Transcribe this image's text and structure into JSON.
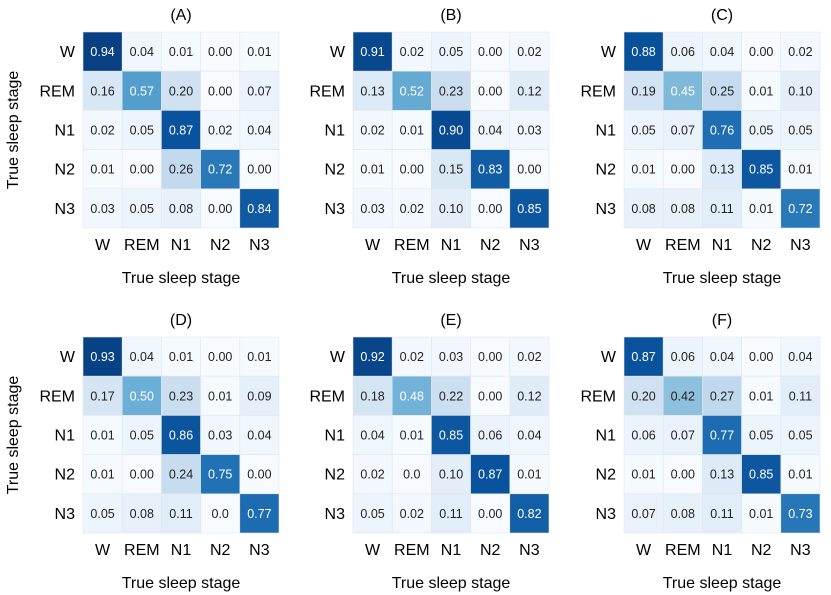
{
  "chart_data": [
    {
      "type": "heatmap",
      "title": "(A)",
      "xlabel": "True sleep stage",
      "ylabel": "True sleep stage",
      "x": [
        "W",
        "REM",
        "N1",
        "N2",
        "N3"
      ],
      "y": [
        "W",
        "REM",
        "N1",
        "N2",
        "N3"
      ],
      "values": [
        [
          "0.94",
          "0.04",
          "0.01",
          "0.00",
          "0.01"
        ],
        [
          "0.16",
          "0.57",
          "0.20",
          "0.00",
          "0.07"
        ],
        [
          "0.02",
          "0.05",
          "0.87",
          "0.02",
          "0.04"
        ],
        [
          "0.01",
          "0.00",
          "0.26",
          "0.72",
          "0.00"
        ],
        [
          "0.03",
          "0.05",
          "0.08",
          "0.00",
          "0.84"
        ]
      ],
      "color_range": [
        0,
        1
      ],
      "colormap": [
        "#f7fbff",
        "#08306b"
      ]
    },
    {
      "type": "heatmap",
      "title": "(B)",
      "xlabel": "True sleep stage",
      "ylabel": "",
      "x": [
        "W",
        "REM",
        "N1",
        "N2",
        "N3"
      ],
      "y": [
        "W",
        "REM",
        "N1",
        "N2",
        "N3"
      ],
      "values": [
        [
          "0.91",
          "0.02",
          "0.05",
          "0.00",
          "0.02"
        ],
        [
          "0.13",
          "0.52",
          "0.23",
          "0.00",
          "0.12"
        ],
        [
          "0.02",
          "0.01",
          "0.90",
          "0.04",
          "0.03"
        ],
        [
          "0.01",
          "0.00",
          "0.15",
          "0.83",
          "0.00"
        ],
        [
          "0.03",
          "0.02",
          "0.10",
          "0.00",
          "0.85"
        ]
      ],
      "color_range": [
        0,
        1
      ],
      "colormap": [
        "#f7fbff",
        "#08306b"
      ]
    },
    {
      "type": "heatmap",
      "title": "(C)",
      "xlabel": "True sleep stage",
      "ylabel": "",
      "x": [
        "W",
        "REM",
        "N1",
        "N2",
        "N3"
      ],
      "y": [
        "W",
        "REM",
        "N1",
        "N2",
        "N3"
      ],
      "values": [
        [
          "0.88",
          "0.06",
          "0.04",
          "0.00",
          "0.02"
        ],
        [
          "0.19",
          "0.45",
          "0.25",
          "0.01",
          "0.10"
        ],
        [
          "0.05",
          "0.07",
          "0.76",
          "0.05",
          "0.05"
        ],
        [
          "0.01",
          "0.00",
          "0.13",
          "0.85",
          "0.01"
        ],
        [
          "0.08",
          "0.08",
          "0.11",
          "0.01",
          "0.72"
        ]
      ],
      "color_range": [
        0,
        1
      ],
      "colormap": [
        "#f7fbff",
        "#08306b"
      ]
    },
    {
      "type": "heatmap",
      "title": "(D)",
      "xlabel": "True sleep stage",
      "ylabel": "True sleep stage",
      "x": [
        "W",
        "REM",
        "N1",
        "N2",
        "N3"
      ],
      "y": [
        "W",
        "REM",
        "N1",
        "N2",
        "N3"
      ],
      "values": [
        [
          "0.93",
          "0.04",
          "0.01",
          "0.00",
          "0.01"
        ],
        [
          "0.17",
          "0.50",
          "0.23",
          "0.01",
          "0.09"
        ],
        [
          "0.01",
          "0.05",
          "0.86",
          "0.03",
          "0.04"
        ],
        [
          "0.01",
          "0.00",
          "0.24",
          "0.75",
          "0.00"
        ],
        [
          "0.05",
          "0.08",
          "0.11",
          "0.0",
          "0.77"
        ]
      ],
      "color_range": [
        0,
        1
      ],
      "colormap": [
        "#f7fbff",
        "#08306b"
      ]
    },
    {
      "type": "heatmap",
      "title": "(E)",
      "xlabel": "True sleep stage",
      "ylabel": "",
      "x": [
        "W",
        "REM",
        "N1",
        "N2",
        "N3"
      ],
      "y": [
        "W",
        "REM",
        "N1",
        "N2",
        "N3"
      ],
      "values": [
        [
          "0.92",
          "0.02",
          "0.03",
          "0.00",
          "0.02"
        ],
        [
          "0.18",
          "0.48",
          "0.22",
          "0.00",
          "0.12"
        ],
        [
          "0.04",
          "0.01",
          "0.85",
          "0.06",
          "0.04"
        ],
        [
          "0.02",
          "0.0",
          "0.10",
          "0.87",
          "0.01"
        ],
        [
          "0.05",
          "0.02",
          "0.11",
          "0.00",
          "0.82"
        ]
      ],
      "color_range": [
        0,
        1
      ],
      "colormap": [
        "#f7fbff",
        "#08306b"
      ]
    },
    {
      "type": "heatmap",
      "title": "(F)",
      "xlabel": "True sleep stage",
      "ylabel": "",
      "x": [
        "W",
        "REM",
        "N1",
        "N2",
        "N3"
      ],
      "y": [
        "W",
        "REM",
        "N1",
        "N2",
        "N3"
      ],
      "values": [
        [
          "0.87",
          "0.06",
          "0.04",
          "0.00",
          "0.04"
        ],
        [
          "0.20",
          "0.42",
          "0.27",
          "0.01",
          "0.11"
        ],
        [
          "0.06",
          "0.07",
          "0.77",
          "0.05",
          "0.05"
        ],
        [
          "0.01",
          "0.00",
          "0.13",
          "0.85",
          "0.01"
        ],
        [
          "0.07",
          "0.08",
          "0.11",
          "0.01",
          "0.73"
        ]
      ],
      "color_range": [
        0,
        1
      ],
      "colormap": [
        "#f7fbff",
        "#08306b"
      ]
    }
  ]
}
